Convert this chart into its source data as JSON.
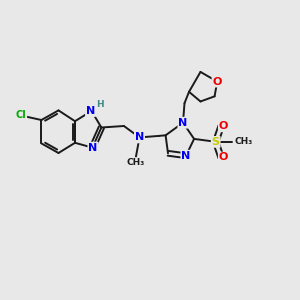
{
  "bg_color": "#e8e8e8",
  "bond_color": "#1a1a1a",
  "bond_width": 1.4,
  "atom_colors": {
    "N": "#0000ee",
    "O": "#ee0000",
    "Cl": "#00aa00",
    "S": "#cccc00",
    "H": "#448888",
    "C": "#1a1a1a"
  },
  "font_size_atom": 8.0,
  "font_size_small": 6.5,
  "font_size_label": 7.0
}
